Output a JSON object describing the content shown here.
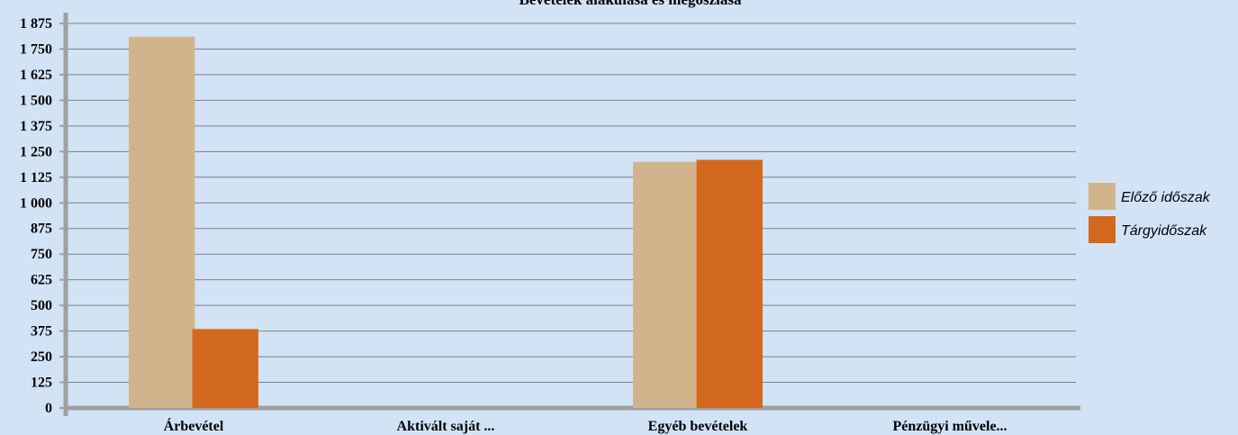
{
  "chart_data": {
    "type": "bar",
    "title": "Bevételek alakulása és megoszlása",
    "xlabel": "",
    "ylabel": "",
    "categories": [
      "Árbevétel",
      "Aktivált saját ...",
      "Egyéb bevételek",
      "Pénzügyi művele..."
    ],
    "series": [
      {
        "name": "Előző időszak",
        "values": [
          1810,
          0,
          1200,
          0
        ],
        "color": "#d2b48c"
      },
      {
        "name": "Tárgyidőszak",
        "values": [
          385,
          0,
          1210,
          0
        ],
        "color": "#d2691e"
      }
    ],
    "ylim": [
      0,
      1875
    ],
    "yticks": [
      0,
      125,
      250,
      375,
      500,
      625,
      750,
      875,
      1000,
      1125,
      1250,
      1375,
      1500,
      1625,
      1750,
      1875
    ],
    "ytick_labels": [
      "0",
      "125",
      "250",
      "375",
      "500",
      "625",
      "750",
      "875",
      "1 000",
      "1 125",
      "1 250",
      "1 375",
      "1 500",
      "1 625",
      "1 750",
      "1 875"
    ],
    "grid": true,
    "legend_position": "right"
  }
}
